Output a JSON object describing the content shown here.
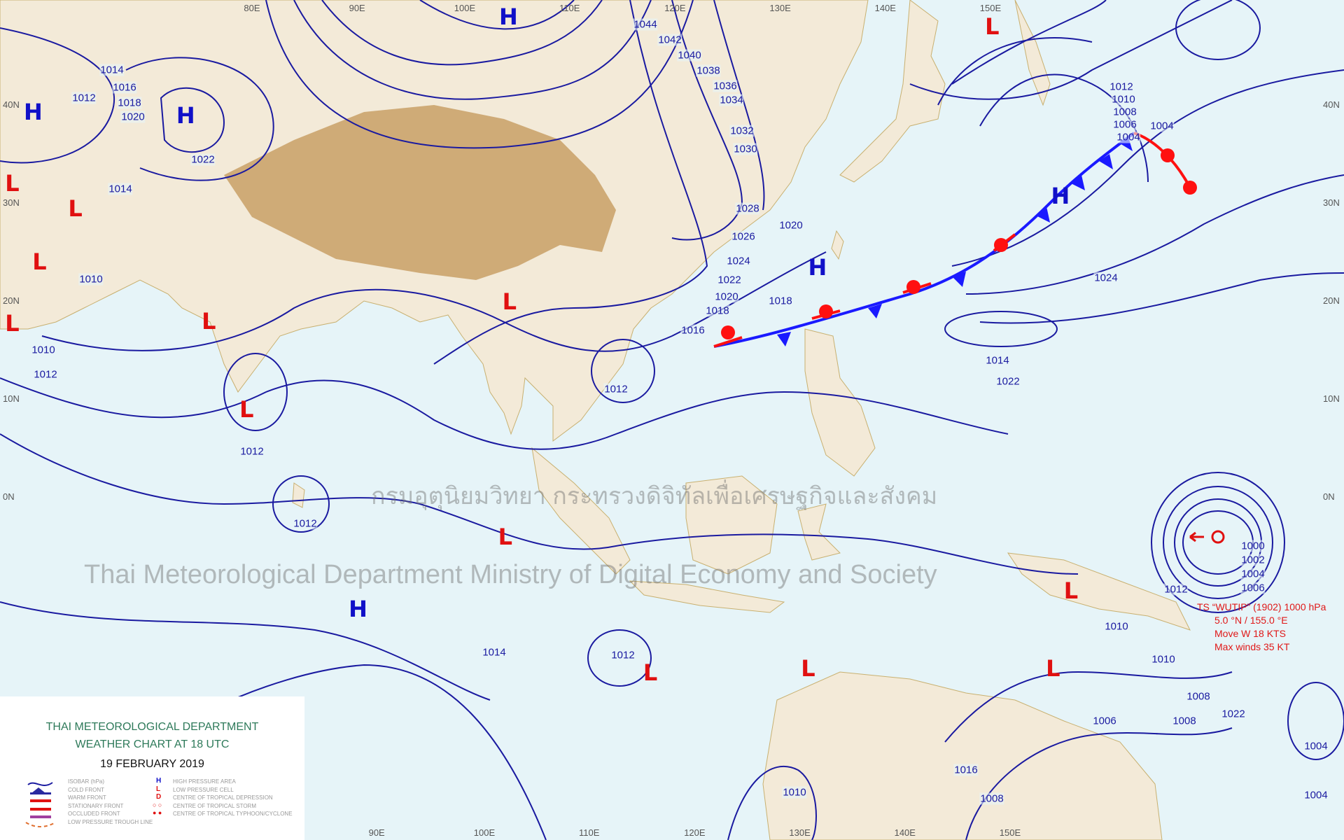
{
  "legend": {
    "title_line1": "THAI METEOROLOGICAL DEPARTMENT",
    "title_line2": "WEATHER CHART AT   18  UTC",
    "date": "19  FEBRUARY  2019",
    "items_left": [
      "ISOBAR (hPa)",
      "COLD FRONT",
      "WARM FRONT",
      "STATIONARY FRONT",
      "OCCLUDED FRONT",
      "LOW PRESSURE TROUGH LINE"
    ],
    "items_right": [
      "HIGH PRESSURE AREA",
      "LOW PRESSURE CELL",
      "CENTRE OF TROPICAL DEPRESSION",
      "CENTRE OF TROPICAL STORM",
      "CENTRE OF TROPICAL TYPHOON/CYCLONE"
    ],
    "symbols_right": [
      "H",
      "L",
      "D"
    ]
  },
  "storm": {
    "line1": "TS “WUTIP” (1902) 1000 hPa",
    "line2": "5.0 °N / 155.0 °E",
    "line3": "Move  W 18 KTS",
    "line4": "Max winds 35 KT"
  },
  "watermark": {
    "thai": "กรมอุตุนิยมวิทยา กระทรวงดิจิทัลเพื่อเศรษฐกิจและสังคม",
    "english": "Thai Meteorological Department Ministry of Digital Economy and Society"
  },
  "grid": {
    "lon_labels": [
      "80E",
      "90E",
      "100E",
      "110E",
      "120E",
      "130E",
      "140E",
      "150E"
    ],
    "lat_labels": [
      "40N",
      "30N",
      "20N",
      "10N",
      "0N"
    ]
  },
  "pressure_centers": [
    {
      "type": "H",
      "lat": 39.3,
      "lon": 57.3
    },
    {
      "type": "H",
      "lat": 38.9,
      "lon": 71.8
    },
    {
      "type": "H",
      "lat": 49.0,
      "lon": 102.5
    },
    {
      "type": "L",
      "lat": 48.0,
      "lon": 148.5
    },
    {
      "type": "H",
      "lat": 23.4,
      "lon": 131.9
    },
    {
      "type": "H",
      "lat": 30.7,
      "lon": 155.0
    },
    {
      "type": "H",
      "lat": -11.4,
      "lon": 88.2
    },
    {
      "type": "L",
      "lat": 32.0,
      "lon": 55.3
    },
    {
      "type": "L",
      "lat": 29.4,
      "lon": 61.3
    },
    {
      "type": "L",
      "lat": 24.0,
      "lon": 57.9
    },
    {
      "type": "L",
      "lat": 17.7,
      "lon": 55.3
    },
    {
      "type": "L",
      "lat": 17.9,
      "lon": 74.0
    },
    {
      "type": "L",
      "lat": 19.9,
      "lon": 102.6
    },
    {
      "type": "L",
      "lat": 8.9,
      "lon": 77.6
    },
    {
      "type": "L",
      "lat": -4.1,
      "lon": 102.2
    },
    {
      "type": "L",
      "lat": -9.6,
      "lon": 156.0
    },
    {
      "type": "L",
      "lat": -17.5,
      "lon": 131.0
    },
    {
      "type": "L",
      "lat": -17.9,
      "lon": 116.0
    },
    {
      "type": "L",
      "lat": -17.5,
      "lon": 154.3
    }
  ],
  "isobar_labels": [
    "1004",
    "1006",
    "1008",
    "1010",
    "1012",
    "1014",
    "1016",
    "1018",
    "1020",
    "1022",
    "1044",
    "1042",
    "1040",
    "1038",
    "1036",
    "1034",
    "1032",
    "1030",
    "1028",
    "1026",
    "1024",
    "1022",
    "1020",
    "1018",
    "1016",
    "1014",
    "1012",
    "1010",
    "1010",
    "1012",
    "1012",
    "1012",
    "1012",
    "1014",
    "1012",
    "1010",
    "1008",
    "1006",
    "1004",
    "1008",
    "1010",
    "1012",
    "1014",
    "1016",
    "1018",
    "1020",
    "1024",
    "1022",
    "1022",
    "1000",
    "1002",
    "1004",
    "1006",
    "1004",
    "1010",
    "1008",
    "1004"
  ],
  "colors": {
    "sea": "#e6f4f8",
    "land": "#f3ead8",
    "plateau": "#c8a066",
    "isobar": "#1a1aa0",
    "cold_front": "#1a1aff",
    "warm_front": "#ff1010",
    "high": "#1010c8",
    "low": "#e01010"
  }
}
